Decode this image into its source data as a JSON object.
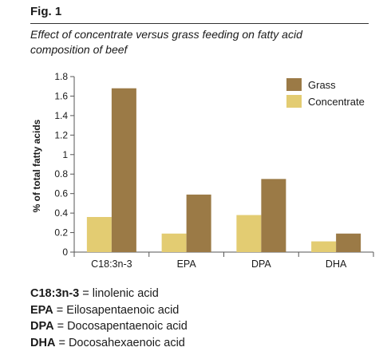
{
  "figure_label": "Fig. 1",
  "subtitle_line1": "Effect of concentrate versus grass feeding on fatty acid",
  "subtitle_line2": "composition of beef",
  "chart_data": {
    "type": "bar",
    "title": "",
    "ylabel": "% of total fatty acids",
    "xlabel": "",
    "ylim": [
      0,
      1.8
    ],
    "yticks": [
      "0",
      "0.2",
      "0.4",
      "0.6",
      "0.8",
      "1",
      "1.2",
      "1.4",
      "1.6",
      "1.8"
    ],
    "ytick_values": [
      0,
      0.2,
      0.4,
      0.6,
      0.8,
      1.0,
      1.2,
      1.4,
      1.6,
      1.8
    ],
    "categories": [
      "C18:3n-3",
      "EPA",
      "DPA",
      "DHA"
    ],
    "series": [
      {
        "name": "Concentrate",
        "color": "#e3cc72",
        "values": [
          0.36,
          0.19,
          0.38,
          0.11
        ]
      },
      {
        "name": "Grass",
        "color": "#9b7a46",
        "values": [
          1.68,
          0.59,
          0.75,
          0.19
        ]
      }
    ],
    "legend": {
      "position": "top-right",
      "items": [
        "Grass",
        "Concentrate"
      ]
    },
    "grid": false
  },
  "footnotes": [
    {
      "abbr": "C18:3n-3",
      "sep": " = ",
      "text": "linolenic acid"
    },
    {
      "abbr": "EPA",
      "sep": " = ",
      "text": "Eilosapentaenoic acid"
    },
    {
      "abbr": "DPA",
      "sep": " = ",
      "text": "Docosapentaenoic acid"
    },
    {
      "abbr": "DHA",
      "sep": " = ",
      "text": "Docosahexaenoic acid"
    }
  ]
}
